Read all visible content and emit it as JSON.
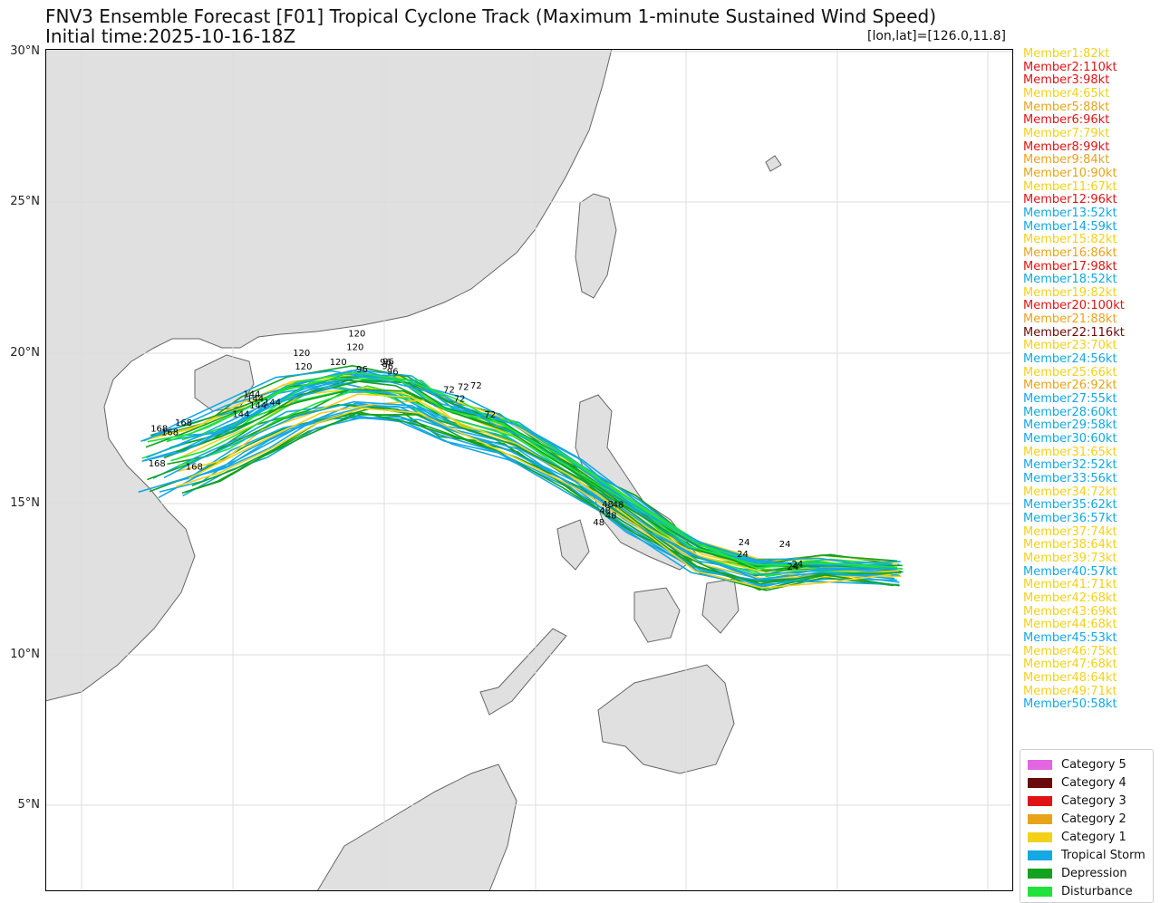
{
  "title": {
    "line1": "FNV3 Ensemble Forecast [F01] Tropical Cyclone Track (Maximum 1-minute Sustained Wind Speed)",
    "line2": "Initial time:2025-10-16-18Z",
    "coords": "[lon,lat]=[126.0,11.8]"
  },
  "axis": {
    "lat_labels": [
      "30°N",
      "25°N",
      "20°N",
      "15°N",
      "10°N",
      "5°N"
    ]
  },
  "colors": {
    "category5": "#e365e0",
    "category4": "#6b0a0a",
    "category3": "#e01414",
    "category2": "#e8a419",
    "category1": "#f3d11b",
    "tropical_storm": "#15a8e2",
    "depression": "#13a21f",
    "disturbance": "#1fe33b",
    "land": "#e0e0e0",
    "coast": "#666666"
  },
  "members": [
    {
      "label": "Member1:82kt",
      "cat": "category1"
    },
    {
      "label": "Member2:110kt",
      "cat": "category3"
    },
    {
      "label": "Member3:98kt",
      "cat": "category3"
    },
    {
      "label": "Member4:65kt",
      "cat": "category1"
    },
    {
      "label": "Member5:88kt",
      "cat": "category2"
    },
    {
      "label": "Member6:96kt",
      "cat": "category3"
    },
    {
      "label": "Member7:79kt",
      "cat": "category1"
    },
    {
      "label": "Member8:99kt",
      "cat": "category3"
    },
    {
      "label": "Member9:84kt",
      "cat": "category2"
    },
    {
      "label": "Member10:90kt",
      "cat": "category2"
    },
    {
      "label": "Member11:67kt",
      "cat": "category1"
    },
    {
      "label": "Member12:96kt",
      "cat": "category3"
    },
    {
      "label": "Member13:52kt",
      "cat": "tropical_storm"
    },
    {
      "label": "Member14:59kt",
      "cat": "tropical_storm"
    },
    {
      "label": "Member15:82kt",
      "cat": "category1"
    },
    {
      "label": "Member16:86kt",
      "cat": "category2"
    },
    {
      "label": "Member17:98kt",
      "cat": "category3"
    },
    {
      "label": "Member18:52kt",
      "cat": "tropical_storm"
    },
    {
      "label": "Member19:82kt",
      "cat": "category1"
    },
    {
      "label": "Member20:100kt",
      "cat": "category3"
    },
    {
      "label": "Member21:88kt",
      "cat": "category2"
    },
    {
      "label": "Member22:116kt",
      "cat": "category4"
    },
    {
      "label": "Member23:70kt",
      "cat": "category1"
    },
    {
      "label": "Member24:56kt",
      "cat": "tropical_storm"
    },
    {
      "label": "Member25:66kt",
      "cat": "category1"
    },
    {
      "label": "Member26:92kt",
      "cat": "category2"
    },
    {
      "label": "Member27:55kt",
      "cat": "tropical_storm"
    },
    {
      "label": "Member28:60kt",
      "cat": "tropical_storm"
    },
    {
      "label": "Member29:58kt",
      "cat": "tropical_storm"
    },
    {
      "label": "Member30:60kt",
      "cat": "tropical_storm"
    },
    {
      "label": "Member31:65kt",
      "cat": "category1"
    },
    {
      "label": "Member32:52kt",
      "cat": "tropical_storm"
    },
    {
      "label": "Member33:56kt",
      "cat": "tropical_storm"
    },
    {
      "label": "Member34:72kt",
      "cat": "category1"
    },
    {
      "label": "Member35:62kt",
      "cat": "tropical_storm"
    },
    {
      "label": "Member36:57kt",
      "cat": "tropical_storm"
    },
    {
      "label": "Member37:74kt",
      "cat": "category1"
    },
    {
      "label": "Member38:64kt",
      "cat": "category1"
    },
    {
      "label": "Member39:73kt",
      "cat": "category1"
    },
    {
      "label": "Member40:57kt",
      "cat": "tropical_storm"
    },
    {
      "label": "Member41:71kt",
      "cat": "category1"
    },
    {
      "label": "Member42:68kt",
      "cat": "category1"
    },
    {
      "label": "Member43:69kt",
      "cat": "category1"
    },
    {
      "label": "Member44:68kt",
      "cat": "category1"
    },
    {
      "label": "Member45:53kt",
      "cat": "tropical_storm"
    },
    {
      "label": "Member46:75kt",
      "cat": "category1"
    },
    {
      "label": "Member47:68kt",
      "cat": "category1"
    },
    {
      "label": "Member48:64kt",
      "cat": "category1"
    },
    {
      "label": "Member49:71kt",
      "cat": "category1"
    },
    {
      "label": "Member50:58kt",
      "cat": "tropical_storm"
    }
  ],
  "legend": [
    {
      "label": "Category 5",
      "cat": "category5"
    },
    {
      "label": "Category 4",
      "cat": "category4"
    },
    {
      "label": "Category 3",
      "cat": "category3"
    },
    {
      "label": "Category 2",
      "cat": "category2"
    },
    {
      "label": "Category 1",
      "cat": "category1"
    },
    {
      "label": "Tropical Storm",
      "cat": "tropical_storm"
    },
    {
      "label": "Depression",
      "cat": "depression"
    },
    {
      "label": "Disturbance",
      "cat": "disturbance"
    }
  ],
  "forecast_hour_labels": [
    "24",
    "48",
    "72",
    "96",
    "120",
    "144",
    "168"
  ]
}
